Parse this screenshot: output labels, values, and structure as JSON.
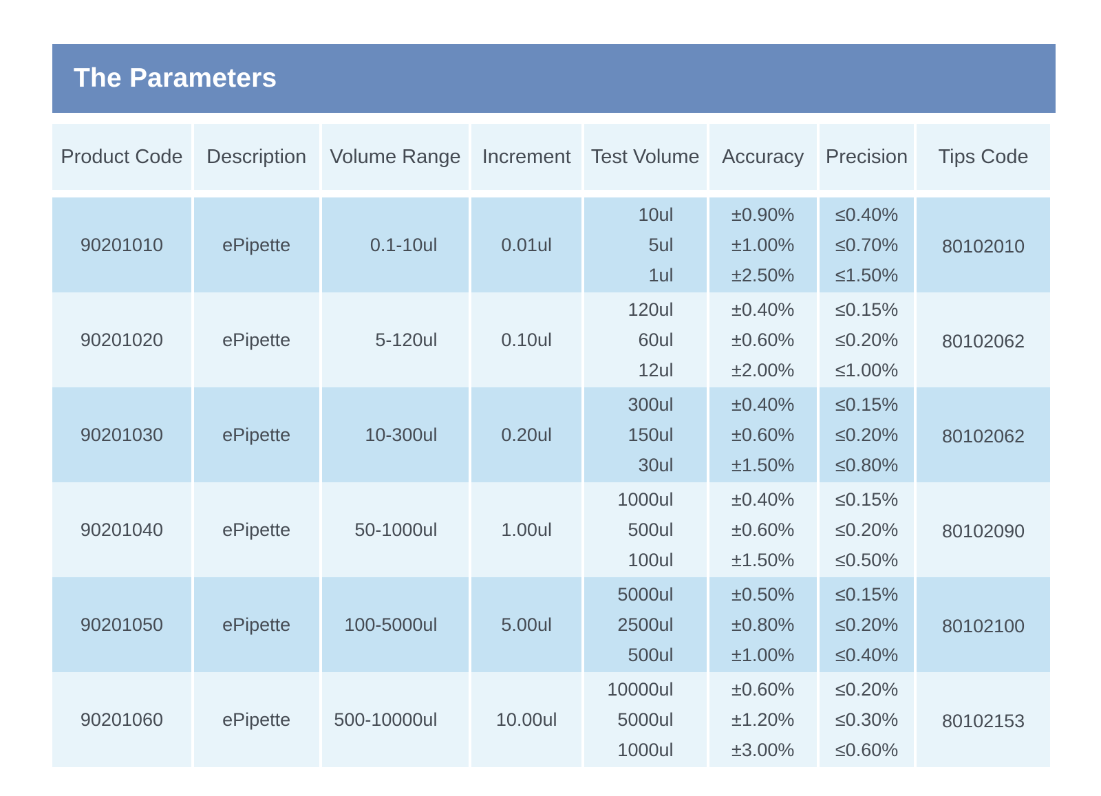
{
  "title": "The Parameters",
  "columns": [
    "Product Code",
    "Description",
    "Volume Range",
    "Increment",
    "Test Volume",
    "Accuracy",
    "Precision",
    "Tips Code"
  ],
  "rows": [
    {
      "product_code": "90201010",
      "description": "ePipette",
      "volume_range": "0.1-10ul",
      "increment": "0.01ul",
      "test_volume": [
        "10ul",
        "5ul",
        "1ul"
      ],
      "accuracy": [
        "±0.90%",
        "±1.00%",
        "±2.50%"
      ],
      "precision": [
        "≤0.40%",
        "≤0.70%",
        "≤1.50%"
      ],
      "tips_code": "80102010"
    },
    {
      "product_code": "90201020",
      "description": "ePipette",
      "volume_range": "5-120ul",
      "increment": "0.10ul",
      "test_volume": [
        "120ul",
        "60ul",
        "12ul"
      ],
      "accuracy": [
        "±0.40%",
        "±0.60%",
        "±2.00%"
      ],
      "precision": [
        "≤0.15%",
        "≤0.20%",
        "≤1.00%"
      ],
      "tips_code": "80102062"
    },
    {
      "product_code": "90201030",
      "description": "ePipette",
      "volume_range": "10-300ul",
      "increment": "0.20ul",
      "test_volume": [
        "300ul",
        "150ul",
        "30ul"
      ],
      "accuracy": [
        "±0.40%",
        "±0.60%",
        "±1.50%"
      ],
      "precision": [
        "≤0.15%",
        "≤0.20%",
        "≤0.80%"
      ],
      "tips_code": "80102062"
    },
    {
      "product_code": "90201040",
      "description": "ePipette",
      "volume_range": "50-1000ul",
      "increment": "1.00ul",
      "test_volume": [
        "1000ul",
        "500ul",
        "100ul"
      ],
      "accuracy": [
        "±0.40%",
        "±0.60%",
        "±1.50%"
      ],
      "precision": [
        "≤0.15%",
        "≤0.20%",
        "≤0.50%"
      ],
      "tips_code": "80102090"
    },
    {
      "product_code": "90201050",
      "description": "ePipette",
      "volume_range": "100-5000ul",
      "increment": "5.00ul",
      "test_volume": [
        "5000ul",
        "2500ul",
        "500ul"
      ],
      "accuracy": [
        "±0.50%",
        "±0.80%",
        "±1.00%"
      ],
      "precision": [
        "≤0.15%",
        "≤0.20%",
        "≤0.40%"
      ],
      "tips_code": "80102100"
    },
    {
      "product_code": "90201060",
      "description": "ePipette",
      "volume_range": "500-10000ul",
      "increment": "10.00ul",
      "test_volume": [
        "10000ul",
        "5000ul",
        "1000ul"
      ],
      "accuracy": [
        "±0.60%",
        "±1.20%",
        "±3.00%"
      ],
      "precision": [
        "≤0.20%",
        "≤0.30%",
        "≤0.60%"
      ],
      "tips_code": "80102153"
    }
  ],
  "colors": {
    "banner": "#6a8bbd",
    "header_bg": "#e8f4fa",
    "row_dark": "#c5e2f3",
    "row_light": "#e8f4fa",
    "text": "#444a52"
  }
}
